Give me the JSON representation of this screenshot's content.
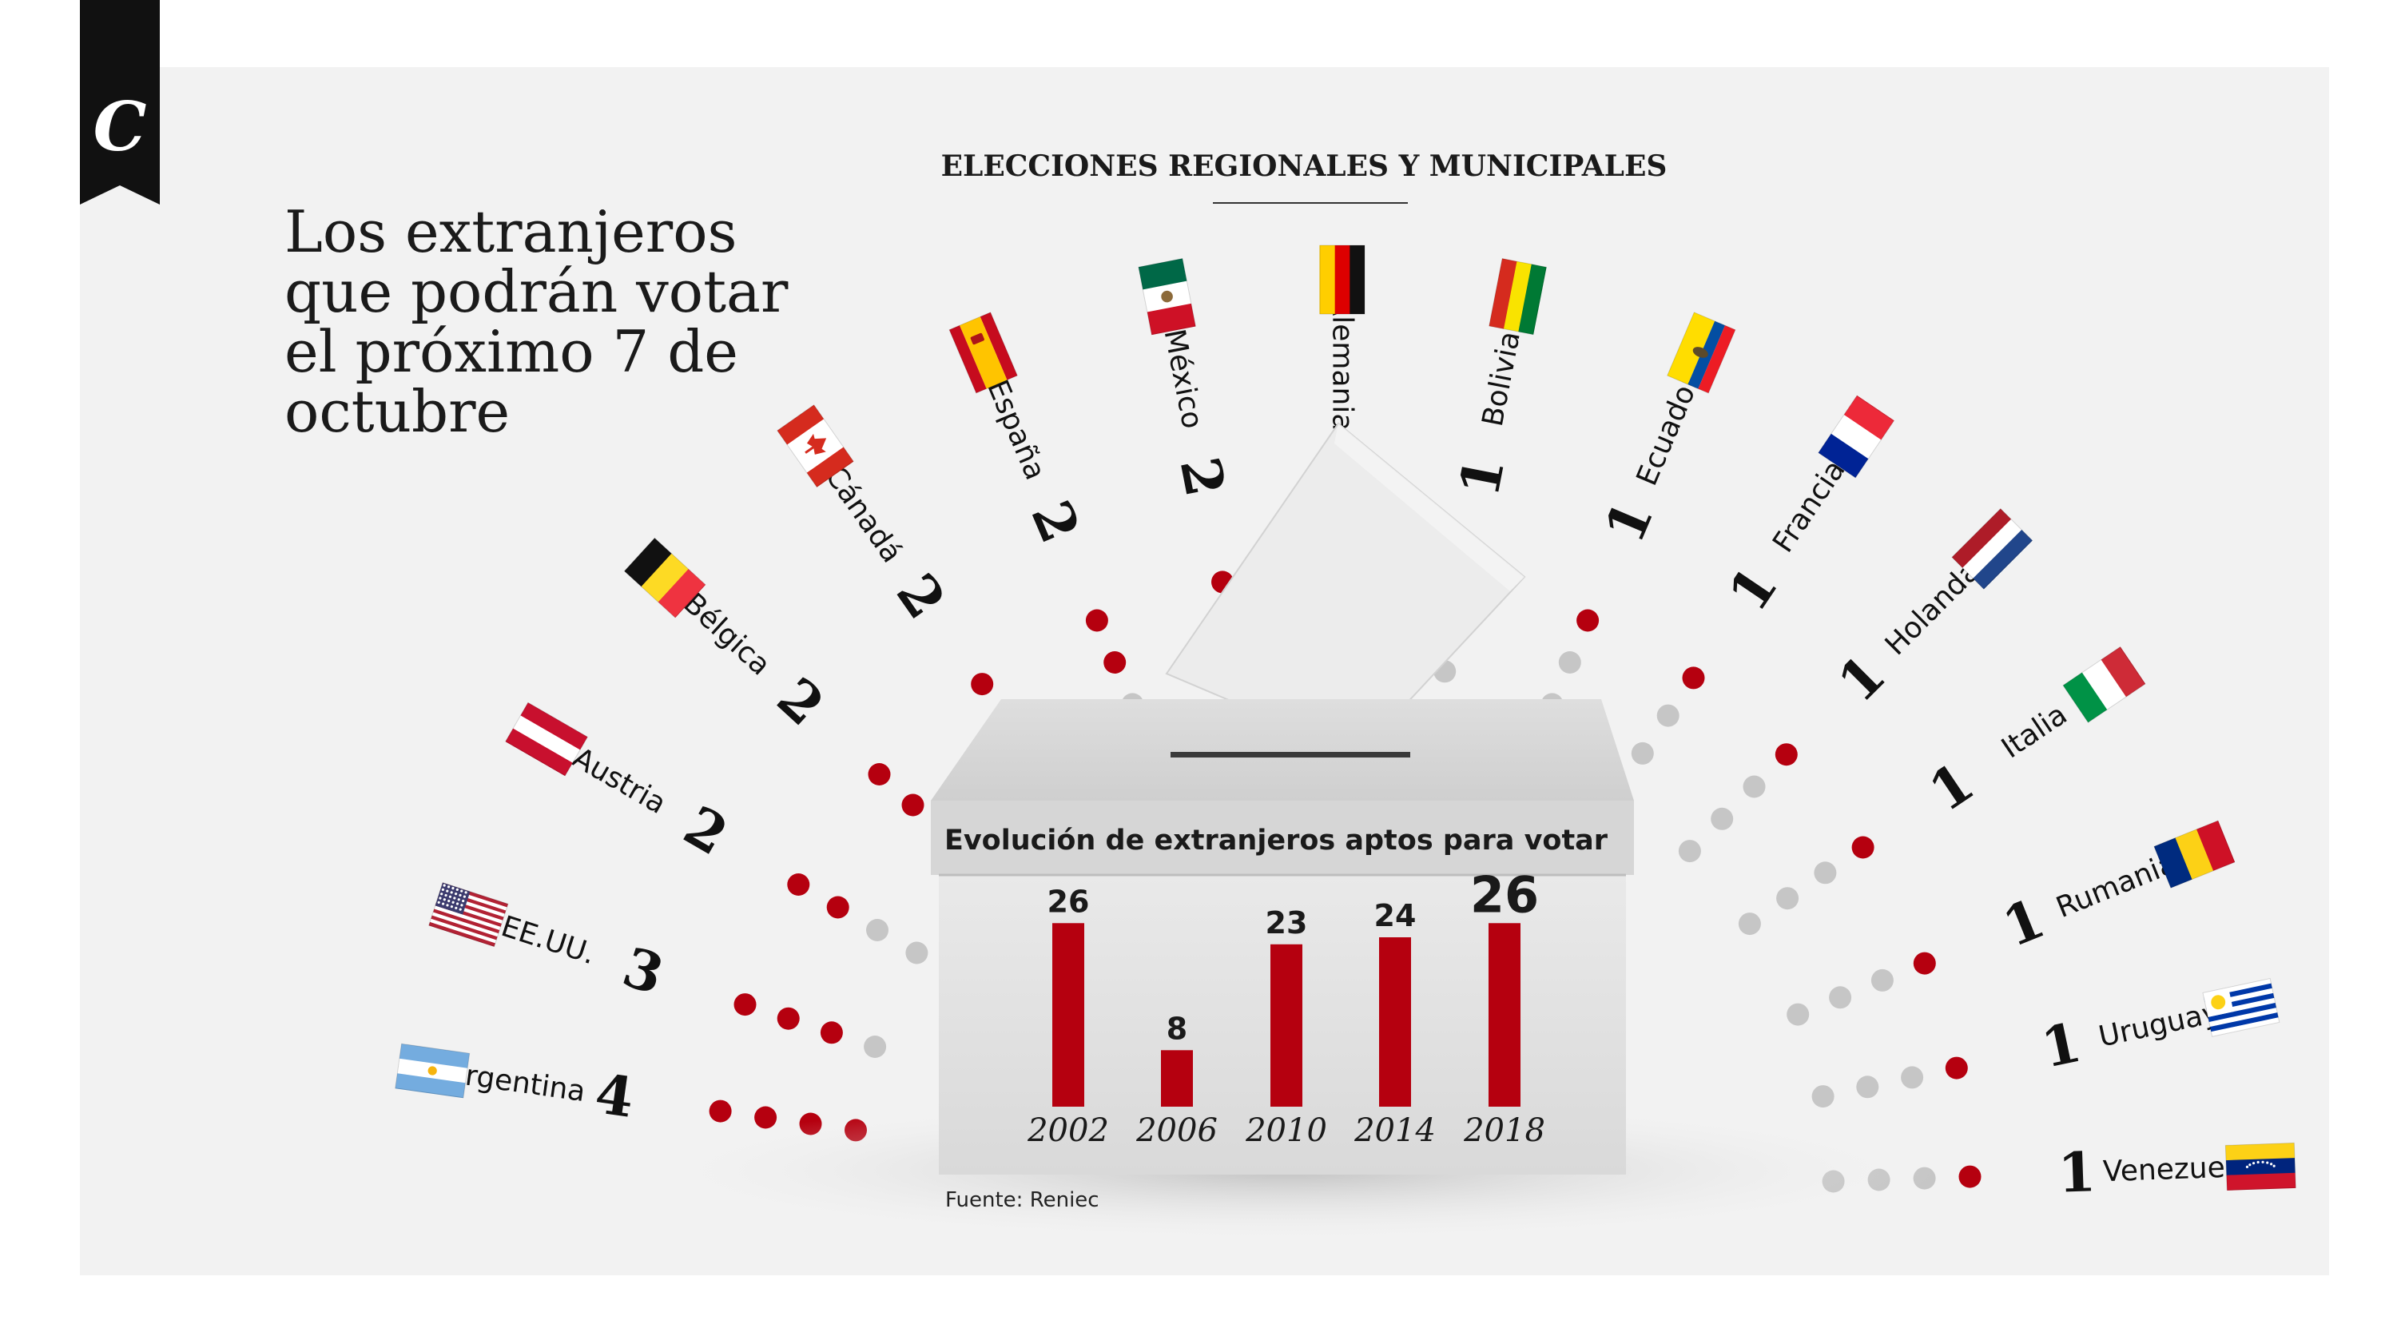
{
  "header": {
    "logo_letter": "C",
    "section_title": "ELECCIONES REGIONALES Y MUNICIPALES",
    "headline": [
      "Los extranjeros",
      "que podrán votar",
      "el próximo 7 de",
      "octubre"
    ]
  },
  "countries": [
    {
      "name": "Argentina",
      "count": "4",
      "flag": "argentina"
    },
    {
      "name": "EE.UU.",
      "count": "3",
      "flag": "usa"
    },
    {
      "name": "Austria",
      "count": "2",
      "flag": "austria"
    },
    {
      "name": "Bélgica",
      "count": "2",
      "flag": "belgium"
    },
    {
      "name": "Cánadá",
      "count": "2",
      "flag": "canada"
    },
    {
      "name": "España",
      "count": "2",
      "flag": "spain"
    },
    {
      "name": "México",
      "count": "2",
      "flag": "mexico"
    },
    {
      "name": "Alemania",
      "count": "1",
      "flag": "germany"
    },
    {
      "name": "Bolivia",
      "count": "1",
      "flag": "bolivia"
    },
    {
      "name": "Ecuador",
      "count": "1",
      "flag": "ecuador"
    },
    {
      "name": "Francia",
      "count": "1",
      "flag": "france"
    },
    {
      "name": "Holanda",
      "count": "1",
      "flag": "netherlands"
    },
    {
      "name": "Italia",
      "count": "1",
      "flag": "italy"
    },
    {
      "name": "Rumania",
      "count": "1",
      "flag": "romania"
    },
    {
      "name": "Uruguay",
      "count": "1",
      "flag": "uruguay"
    },
    {
      "name": "Venezuela",
      "count": "1",
      "flag": "venezuela"
    }
  ],
  "chart_data": {
    "type": "bar",
    "title": "Evolución de extranjeros aptos para votar",
    "categories": [
      "2002",
      "2006",
      "2010",
      "2014",
      "2018"
    ],
    "values": [
      26,
      8,
      23,
      24,
      26
    ],
    "ylim": [
      0,
      30
    ],
    "grid": false,
    "bar_color": "#b5000f"
  },
  "source": "Fuente: Reniec",
  "colors": {
    "accent_red": "#b5000f",
    "dot_gray": "#c6c6c6",
    "panel": "#f2f2f2",
    "logo_bg": "#111111"
  }
}
